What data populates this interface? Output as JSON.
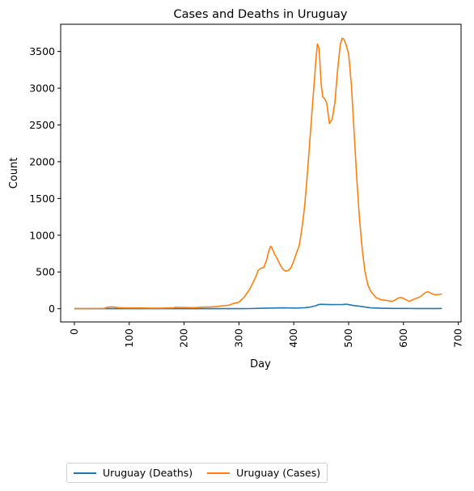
{
  "chart_data": {
    "type": "line",
    "title": "Cases and Deaths in Uruguay",
    "xlabel": "Day",
    "ylabel": "Count",
    "xlim": [
      -25,
      705
    ],
    "ylim": [
      -180,
      3870
    ],
    "xticks": [
      0,
      100,
      200,
      300,
      400,
      500,
      600,
      700
    ],
    "yticks": [
      0,
      500,
      1000,
      1500,
      2000,
      2500,
      3000,
      3500
    ],
    "series": [
      {
        "name": "Uruguay (Deaths)",
        "color": "#1f77b4",
        "x": [
          0,
          50,
          100,
          150,
          200,
          250,
          300,
          320,
          340,
          360,
          380,
          400,
          410,
          420,
          430,
          440,
          445,
          450,
          460,
          470,
          480,
          490,
          495,
          500,
          510,
          520,
          530,
          540,
          560,
          580,
          600,
          620,
          640,
          660,
          670
        ],
        "y": [
          0,
          0,
          1,
          1,
          1,
          1,
          1,
          2,
          6,
          9,
          11,
          9,
          10,
          14,
          22,
          40,
          55,
          60,
          58,
          55,
          57,
          58,
          62,
          55,
          42,
          33,
          22,
          12,
          6,
          4,
          4,
          3,
          3,
          3,
          4
        ]
      },
      {
        "name": "Uruguay (Cases)",
        "color": "#ff7f0e",
        "x": [
          0,
          20,
          40,
          55,
          60,
          65,
          70,
          75,
          80,
          90,
          100,
          120,
          140,
          160,
          170,
          180,
          185,
          190,
          200,
          210,
          220,
          230,
          240,
          250,
          260,
          270,
          280,
          290,
          300,
          310,
          320,
          330,
          335,
          340,
          345,
          350,
          355,
          358,
          360,
          365,
          370,
          375,
          380,
          385,
          390,
          395,
          400,
          405,
          410,
          415,
          420,
          425,
          430,
          435,
          440,
          443,
          446,
          450,
          453,
          456,
          460,
          465,
          470,
          475,
          480,
          485,
          488,
          491,
          495,
          500,
          505,
          510,
          515,
          520,
          525,
          530,
          535,
          540,
          550,
          560,
          570,
          580,
          585,
          590,
          595,
          600,
          605,
          610,
          620,
          630,
          640,
          645,
          650,
          655,
          660,
          670
        ],
        "y": [
          0,
          0,
          2,
          5,
          20,
          25,
          25,
          20,
          15,
          12,
          10,
          10,
          8,
          8,
          10,
          12,
          20,
          18,
          18,
          15,
          15,
          20,
          22,
          25,
          30,
          40,
          45,
          70,
          90,
          160,
          270,
          420,
          520,
          550,
          560,
          650,
          800,
          850,
          830,
          740,
          680,
          600,
          540,
          510,
          520,
          560,
          650,
          760,
          860,
          1100,
          1400,
          1850,
          2350,
          2850,
          3350,
          3600,
          3550,
          3050,
          2880,
          2860,
          2800,
          2520,
          2580,
          2800,
          3250,
          3600,
          3680,
          3670,
          3600,
          3470,
          3050,
          2400,
          1750,
          1200,
          800,
          500,
          330,
          240,
          150,
          120,
          110,
          100,
          120,
          145,
          155,
          140,
          120,
          100,
          130,
          160,
          220,
          230,
          210,
          195,
          190,
          200
        ]
      }
    ]
  }
}
